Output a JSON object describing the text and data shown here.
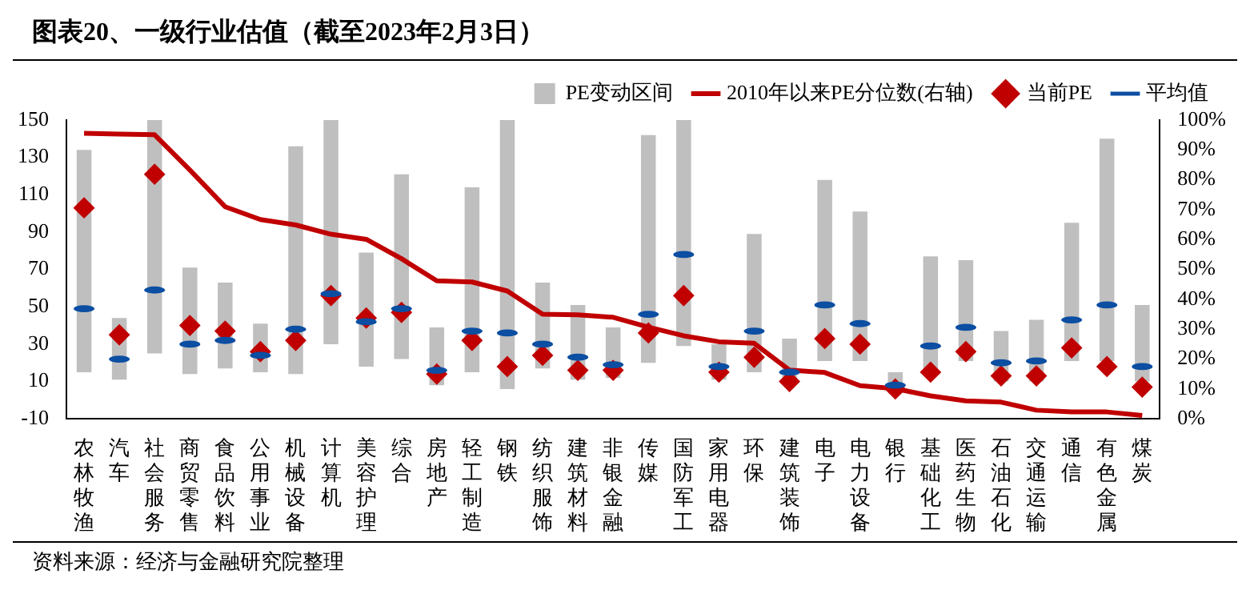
{
  "chart_data": {
    "type": "bar",
    "title": "图表20、一级行业估值（截至2023年2月3日）",
    "annotations": [
      "资料来源：经济与金融研究院整理"
    ],
    "categories": [
      "农林牧渔",
      "汽车",
      "社会服务",
      "商贸零售",
      "食品饮料",
      "公用事业",
      "机械设备",
      "计算机",
      "美容护理",
      "综合",
      "房地产",
      "轻工制造",
      "钢铁",
      "纺织服饰",
      "建筑材料",
      "非银金融",
      "传媒",
      "国防军工",
      "家用电器",
      "环保",
      "建筑装饰",
      "电子",
      "电力设备",
      "银行",
      "基础化工",
      "医药生物",
      "石油石化",
      "交通运输",
      "通信",
      "有色金属",
      "煤炭"
    ],
    "series": [
      {
        "name": "PE变动区间",
        "color": "#bfbfbf",
        "base": [
          15,
          11,
          25,
          14,
          17,
          15,
          14,
          30,
          18,
          22,
          8,
          15,
          6,
          17,
          11,
          12,
          20,
          29,
          11,
          15,
          11,
          21,
          21,
          6,
          15,
          21,
          10,
          10,
          21,
          21,
          10
        ],
        "values": [
          119,
          33,
          125,
          57,
          46,
          26,
          122,
          120,
          61,
          99,
          31,
          99,
          144,
          46,
          40,
          27,
          122,
          121,
          19,
          74,
          22,
          97,
          80,
          9,
          62,
          54,
          27,
          33,
          74,
          119,
          41
        ]
      },
      {
        "name": "2010年以来PE分位数(右轴)",
        "type": "line",
        "axis": "y2",
        "color": "#c00000",
        "marker": "none",
        "values": [
          95.6,
          95.3,
          95.1,
          83.3,
          71,
          66.7,
          64.9,
          61.8,
          60.1,
          53.6,
          46.2,
          45.8,
          42.8,
          35,
          34.8,
          34,
          30.7,
          27.8,
          25.8,
          25.3,
          16.3,
          15.5,
          11.1,
          10.1,
          7.7,
          6,
          5.6,
          2.9,
          2.3,
          2.3,
          1.1
        ]
      },
      {
        "name": "当前PE",
        "type": "scatter",
        "color": "#c00000",
        "marker": "diamond",
        "values": [
          103,
          35,
          121,
          40,
          37,
          26,
          32,
          56,
          44,
          47,
          14,
          32,
          18,
          24,
          16,
          16,
          36,
          56,
          15,
          23,
          10,
          33,
          30,
          6,
          15,
          26,
          13,
          13,
          28,
          18,
          7
        ]
      },
      {
        "name": "平均值",
        "type": "scatter",
        "color": "#0b4ea2",
        "values": [
          49,
          22,
          59,
          30,
          32,
          24,
          38,
          57,
          42,
          49,
          16,
          37,
          36,
          30,
          23,
          19,
          46,
          78,
          18,
          37,
          15,
          51,
          41,
          8,
          29,
          39,
          20,
          21,
          43,
          51,
          18
        ]
      }
    ],
    "ylim": [
      -10,
      150
    ],
    "yticks": [
      -10,
      10,
      30,
      50,
      70,
      90,
      110,
      130,
      150
    ],
    "y2lim": [
      0,
      100
    ],
    "y2ticks": [
      {
        "value": 0,
        "label": "0%"
      },
      {
        "value": 10,
        "label": "10%"
      },
      {
        "value": 20,
        "label": "20%"
      },
      {
        "value": 30,
        "label": "30%"
      },
      {
        "value": 40,
        "label": "40%"
      },
      {
        "value": 50,
        "label": "50%"
      },
      {
        "value": 60,
        "label": "60%"
      },
      {
        "value": 70,
        "label": "70%"
      },
      {
        "value": 80,
        "label": "80%"
      },
      {
        "value": 90,
        "label": "90%"
      },
      {
        "value": 100,
        "label": "100%"
      }
    ],
    "legend": "top",
    "grid": false
  }
}
